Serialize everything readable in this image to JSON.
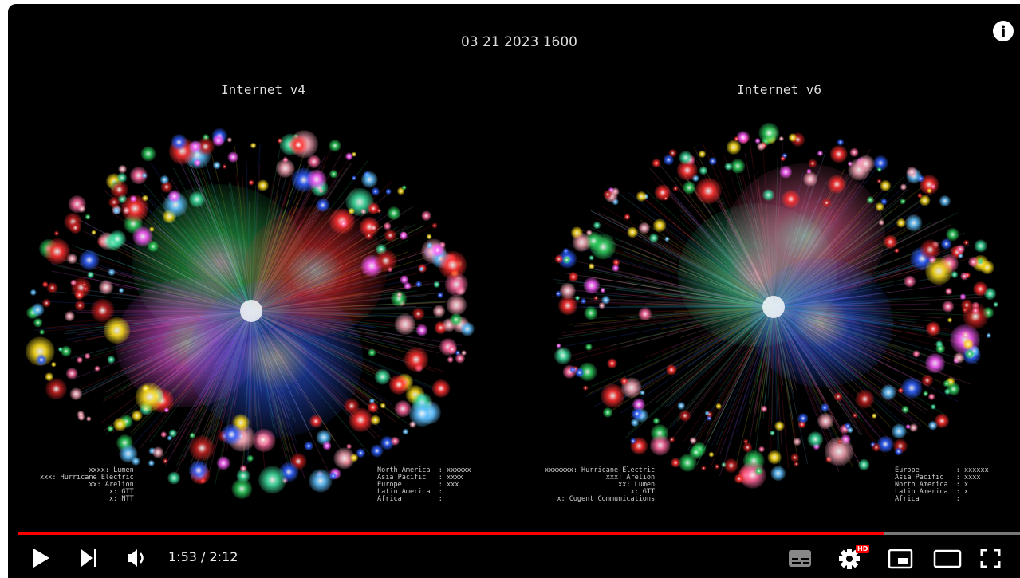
{
  "video": {
    "timestamp": "03 21 2023 1600",
    "panels": [
      {
        "title": "Internet v4",
        "providers": [
          "xxxx: Lumen",
          "xxx: Hurricane Electric",
          "xx: Arelion",
          "x: GTT",
          "x: NTT"
        ],
        "regions": [
          "North America  : xxxxxx",
          "Asia Pacific   : xxxx",
          "Europe         : xxx",
          "Latin America  :",
          "Africa         :"
        ]
      },
      {
        "title": "Internet v6",
        "providers": [
          "xxxxxxx: Hurricane Electric",
          "xxx: Arelion",
          "xx: Lumen",
          "x: GTT",
          "x: Cogent Communications"
        ],
        "regions": [
          "Europe         : xxxxxx",
          "Asia Pacific   : xxxx",
          "North America  : x",
          "Latin America  : x",
          "Africa         :"
        ]
      }
    ],
    "player": {
      "time": "1:53 / 2:12",
      "badge": "HD"
    }
  }
}
